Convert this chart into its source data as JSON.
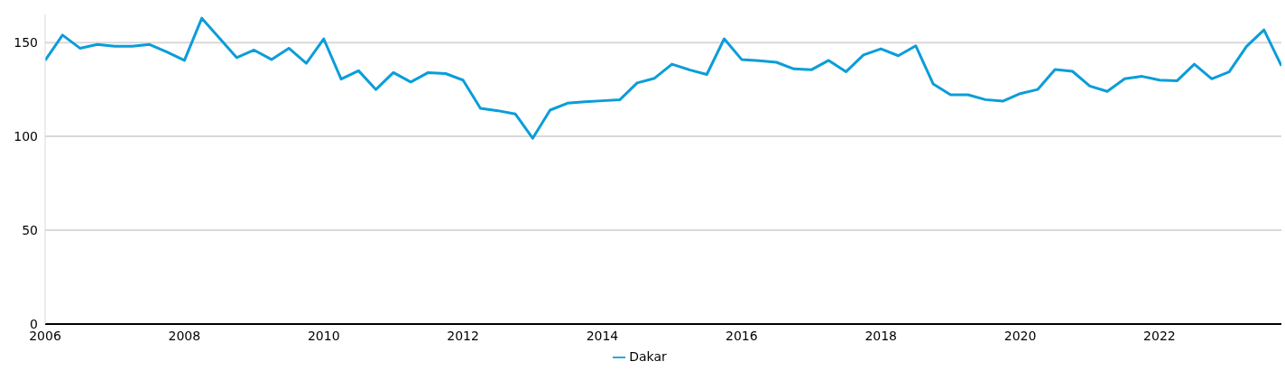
{
  "chart_data": {
    "type": "line",
    "x": [
      "2006-01",
      "2006-04",
      "2006-07",
      "2006-10",
      "2007-01",
      "2007-04",
      "2007-07",
      "2007-10",
      "2008-01",
      "2008-04",
      "2008-07",
      "2008-10",
      "2009-01",
      "2009-04",
      "2009-07",
      "2009-10",
      "2010-01",
      "2010-04",
      "2010-07",
      "2010-10",
      "2011-01",
      "2011-04",
      "2011-07",
      "2011-10",
      "2012-01",
      "2012-04",
      "2012-07",
      "2012-10",
      "2013-01",
      "2013-04",
      "2013-07",
      "2013-10",
      "2014-01",
      "2014-04",
      "2014-07",
      "2014-10",
      "2015-01",
      "2015-04",
      "2015-07",
      "2015-10",
      "2016-01",
      "2016-04",
      "2016-07",
      "2016-10",
      "2017-01",
      "2017-04",
      "2017-07",
      "2017-10",
      "2018-01",
      "2018-04",
      "2018-07",
      "2018-10",
      "2019-01",
      "2019-04",
      "2019-07",
      "2019-10",
      "2020-01",
      "2020-04",
      "2020-07",
      "2020-10",
      "2021-01",
      "2021-04",
      "2021-07",
      "2021-10",
      "2022-01",
      "2022-04",
      "2022-07",
      "2022-10",
      "2023-01",
      "2023-04",
      "2023-07",
      "2023-10"
    ],
    "series": [
      {
        "name": "Dakar",
        "color": "#0b9dd9",
        "values": [
          140.5,
          154,
          147,
          149,
          148,
          148,
          149,
          145,
          140.5,
          163,
          152.5,
          142,
          146,
          141,
          147,
          139,
          152,
          130.5,
          135,
          125,
          134,
          129,
          134,
          133.5,
          130,
          115,
          113.7,
          112,
          99,
          114,
          117.7,
          118.5,
          119,
          119.5,
          128.5,
          131,
          138.5,
          135.5,
          133,
          152,
          141,
          140.3,
          139.5,
          136,
          135.5,
          140.5,
          134.5,
          143.4,
          146.7,
          143,
          148.3,
          128,
          122.2,
          122.2,
          119.6,
          118.8,
          122.8,
          125,
          135.7,
          134.7,
          126.8,
          124,
          130.7,
          132,
          130,
          129.6,
          138.5,
          130.7,
          134.4,
          148,
          156.8,
          137.6
        ]
      }
    ],
    "xlim": [
      "2006-01",
      "2023-10"
    ],
    "xticks": [
      "2006",
      "2008",
      "2010",
      "2012",
      "2014",
      "2016",
      "2018",
      "2020",
      "2022"
    ],
    "yticks": [
      0,
      50,
      100,
      150
    ],
    "ylim": [
      0,
      165
    ],
    "grid": "y",
    "legend": "bottom",
    "marker": "none",
    "line_style": "solid"
  }
}
